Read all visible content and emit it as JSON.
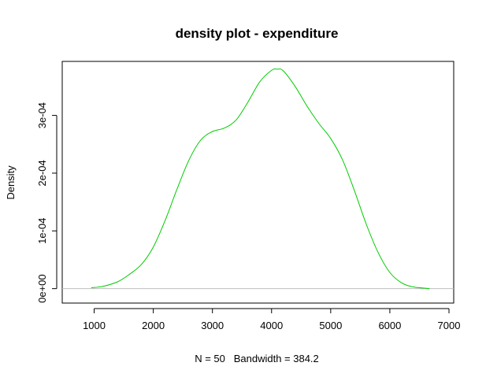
{
  "chart_data": {
    "type": "line",
    "title": "density plot - expenditure",
    "xlabel": "N = 50   Bandwidth = 384.2",
    "ylabel": "Density",
    "xlim": [
      460,
      7080
    ],
    "ylim": [
      -2.5e-05,
      0.0003935
    ],
    "x_ticks": [
      1000,
      2000,
      3000,
      4000,
      5000,
      6000,
      7000
    ],
    "x_tick_labels": [
      "1000",
      "2000",
      "3000",
      "4000",
      "5000",
      "6000",
      "7000"
    ],
    "y_ticks": [
      0,
      0.0001,
      0.0002,
      0.0003
    ],
    "y_tick_labels": [
      "0e+00",
      "1e-04",
      "2e-04",
      "3e-04"
    ],
    "baseline": 0,
    "grid": false,
    "line_color": "#00cc00",
    "baseline_color": "#bebebe",
    "series": [
      {
        "x": [
          950,
          1150,
          1400,
          1600,
          1800,
          2000,
          2200,
          2400,
          2600,
          2800,
          3000,
          3200,
          3400,
          3600,
          3800,
          4000,
          4100,
          4200,
          4400,
          4600,
          4800,
          5000,
          5200,
          5400,
          5600,
          5800,
          6000,
          6200,
          6400,
          6670
        ],
        "y": [
          1.5e-06,
          4e-06,
          1.2e-05,
          2.5e-05,
          4.2e-05,
          7.2e-05,
          0.000118,
          0.000172,
          0.000222,
          0.000257,
          0.000272,
          0.000278,
          0.000292,
          0.000323,
          0.000358,
          0.000378,
          0.00038,
          0.000377,
          0.00035,
          0.000316,
          0.000286,
          0.00026,
          0.000223,
          0.00017,
          0.000112,
          6.3e-05,
          2.8e-05,
          1e-05,
          3e-06,
          2e-07
        ]
      }
    ]
  }
}
